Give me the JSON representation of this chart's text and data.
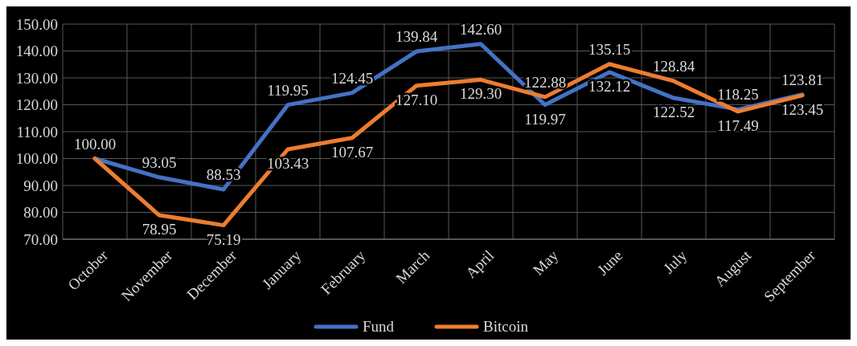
{
  "chart_data": {
    "type": "line",
    "categories": [
      "October",
      "November",
      "December",
      "January",
      "February",
      "March",
      "April",
      "May",
      "June",
      "July",
      "August",
      "September"
    ],
    "series": [
      {
        "name": "Fund",
        "color": "#4472c4",
        "values": [
          100.0,
          93.05,
          88.53,
          119.95,
          124.45,
          139.84,
          142.6,
          119.97,
          132.12,
          122.52,
          118.25,
          123.81
        ],
        "value_labels": [
          "100.00",
          "93.05",
          "88.53",
          "119.95",
          "124.45",
          "139.84",
          "142.60",
          "119.97",
          "132.12",
          "122.52",
          "118.25",
          "123.81"
        ]
      },
      {
        "name": "Bitcoin",
        "color": "#ed7d31",
        "values": [
          100.0,
          78.95,
          75.19,
          103.43,
          107.67,
          127.1,
          129.3,
          122.88,
          135.15,
          128.84,
          117.49,
          123.45
        ],
        "value_labels": [
          null,
          "78.95",
          "75.19",
          "103.43",
          "107.67",
          "127.10",
          "129.30",
          "122.88",
          "135.15",
          "128.84",
          "117.49",
          "123.45"
        ]
      }
    ],
    "ylim": [
      70,
      150
    ],
    "yticks": [
      {
        "value": 70,
        "label": "70.00"
      },
      {
        "value": 80,
        "label": "80.00"
      },
      {
        "value": 90,
        "label": "90.00"
      },
      {
        "value": 100,
        "label": "100.00"
      },
      {
        "value": 110,
        "label": "110.00"
      },
      {
        "value": 120,
        "label": "120.00"
      },
      {
        "value": 130,
        "label": "130.00"
      },
      {
        "value": 140,
        "label": "140.00"
      },
      {
        "value": 150,
        "label": "150.00"
      }
    ],
    "grid": true,
    "legend": "bottom",
    "marker": "none",
    "line_style": "solid"
  }
}
